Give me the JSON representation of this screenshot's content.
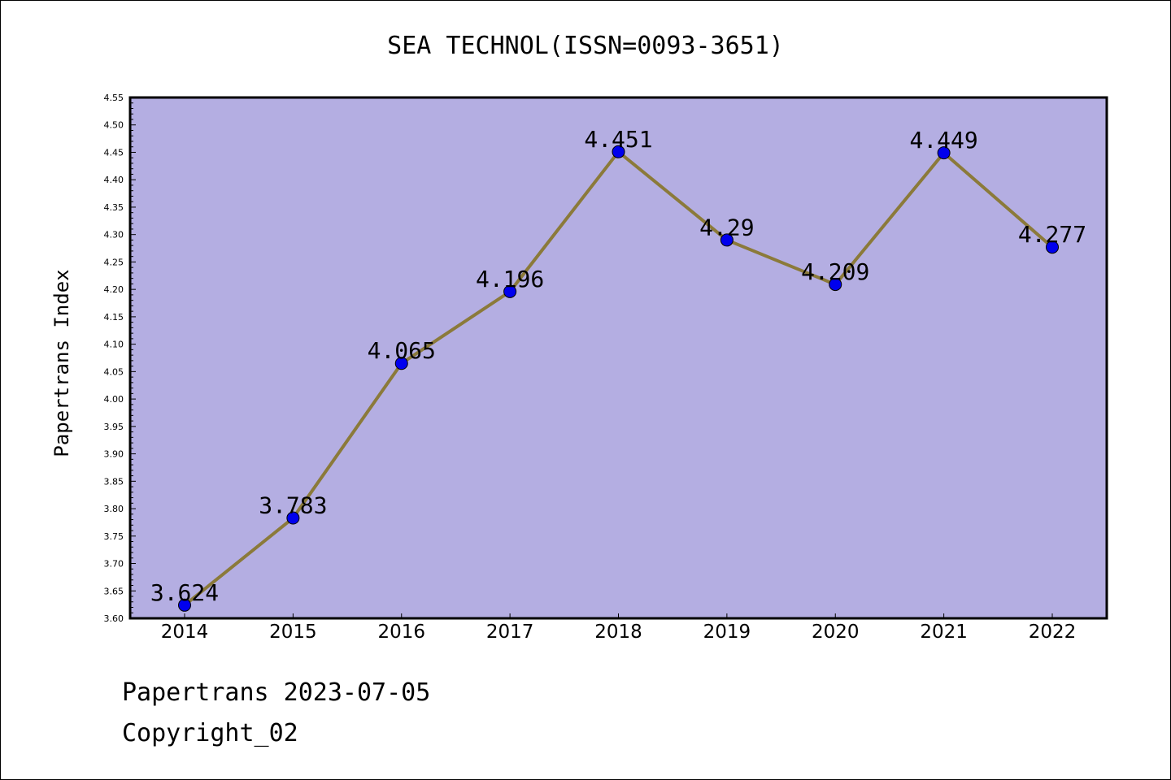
{
  "chart_data": {
    "type": "line",
    "title": "SEA TECHNOL(ISSN=0093-3651)",
    "ylabel": "Papertrans Index",
    "xlabel": "",
    "x": [
      "2014",
      "2015",
      "2016",
      "2017",
      "2018",
      "2019",
      "2020",
      "2021",
      "2022"
    ],
    "series": [
      {
        "values": [
          3.624,
          3.783,
          4.065,
          4.196,
          4.451,
          4.29,
          4.209,
          4.449,
          4.277
        ],
        "labels": [
          "3.624",
          "3.783",
          "4.065",
          "4.196",
          "4.451",
          "4.29",
          "4.209",
          "4.449",
          "4.277"
        ]
      }
    ],
    "ylim": [
      3.6,
      4.55
    ],
    "yticks": [
      "3.60",
      "3.65",
      "3.70",
      "3.75",
      "3.80",
      "3.85",
      "3.90",
      "3.95",
      "4.00",
      "4.05",
      "4.10",
      "4.15",
      "4.20",
      "4.25",
      "4.30",
      "4.35",
      "4.40",
      "4.45",
      "4.50",
      "4.55"
    ],
    "grid": false,
    "legend": "none",
    "colors": {
      "plot_bg": "#b4aee2",
      "line": "#8b7a3a",
      "marker": "#0000ee"
    }
  },
  "footer": {
    "line1": "Papertrans 2023-07-05",
    "line2": "Copyright_02"
  }
}
